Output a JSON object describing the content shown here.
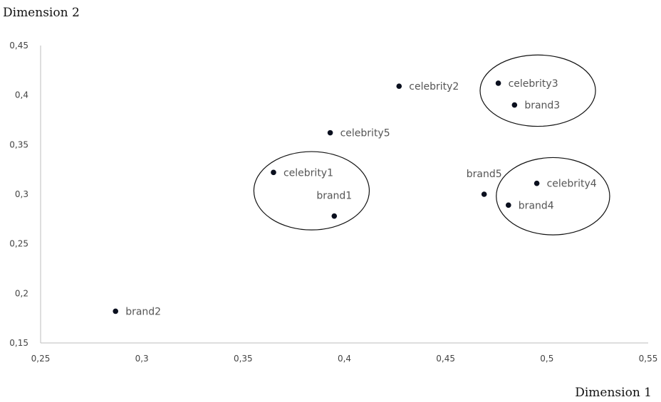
{
  "chart_data": {
    "type": "scatter",
    "xlabel": "Dimension 1",
    "ylabel": "Dimension 2",
    "xlim": [
      0.25,
      0.55
    ],
    "ylim": [
      0.15,
      0.45
    ],
    "x_ticks": [
      "0,25",
      "0,3",
      "0,35",
      "0,4",
      "0,45",
      "0,5",
      "0,55"
    ],
    "y_ticks": [
      "0,15",
      "0,2",
      "0,25",
      "0,3",
      "0,35",
      "0,4",
      "0,45"
    ],
    "grid": false,
    "legend": "none",
    "point_color": "#0a0f1e",
    "points": [
      {
        "label": "celebrity1",
        "x": 0.365,
        "y": 0.322,
        "label_pos": "right"
      },
      {
        "label": "brand1",
        "x": 0.395,
        "y": 0.278,
        "label_pos": "above"
      },
      {
        "label": "celebrity2",
        "x": 0.427,
        "y": 0.409,
        "label_pos": "right"
      },
      {
        "label": "celebrity5",
        "x": 0.393,
        "y": 0.362,
        "label_pos": "right"
      },
      {
        "label": "brand2",
        "x": 0.287,
        "y": 0.182,
        "label_pos": "right"
      },
      {
        "label": "celebrity3",
        "x": 0.476,
        "y": 0.412,
        "label_pos": "right"
      },
      {
        "label": "brand3",
        "x": 0.484,
        "y": 0.39,
        "label_pos": "right"
      },
      {
        "label": "brand5",
        "x": 0.469,
        "y": 0.3,
        "label_pos": "above"
      },
      {
        "label": "celebrity4",
        "x": 0.495,
        "y": 0.311,
        "label_pos": "right"
      },
      {
        "label": "brand4",
        "x": 0.481,
        "y": 0.289,
        "label_pos": "right"
      }
    ],
    "groups": [
      {
        "members": [
          "celebrity1",
          "brand1"
        ],
        "cx": 0.3838,
        "cy": 0.3035,
        "rx": 0.0285,
        "ry": 0.0395
      },
      {
        "members": [
          "celebrity3",
          "brand3"
        ],
        "cx": 0.4955,
        "cy": 0.4045,
        "rx": 0.0285,
        "ry": 0.036
      },
      {
        "members": [
          "celebrity4",
          "brand4"
        ],
        "cx": 0.503,
        "cy": 0.298,
        "rx": 0.028,
        "ry": 0.039
      }
    ]
  }
}
